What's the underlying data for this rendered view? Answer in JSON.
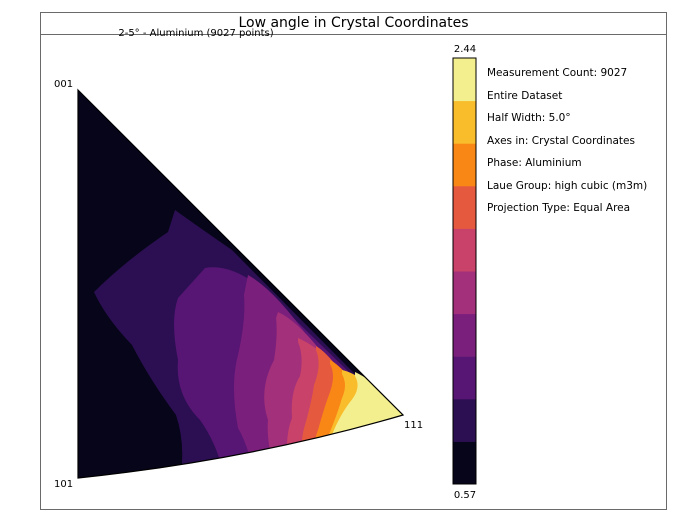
{
  "chart_data": {
    "type": "heatmap",
    "title": "Low angle in Crystal Coordinates",
    "subtitle": "2-5° - Aluminium (9027 points)",
    "corner_labels": {
      "top": "001",
      "bottom_left": "101",
      "right": "111"
    },
    "colorbar": {
      "max_label": "2.44",
      "min_label": "0.57",
      "min": 0.57,
      "max": 2.44,
      "levels": 10,
      "colors": [
        "#07051a",
        "#2c0f52",
        "#571574",
        "#7b1f7c",
        "#a2307a",
        "#c8426a",
        "#e5593f",
        "#f98716",
        "#f9bd2c",
        "#f4ef8e"
      ]
    },
    "legend": [
      "Measurement Count: 9027",
      "Entire Dataset",
      "Half Width: 5.0°",
      "Axes in: Crystal Coordinates",
      "Phase: Aluminium",
      "Laue Group: high cubic (m3m)",
      "Projection Type: Equal Area"
    ]
  }
}
